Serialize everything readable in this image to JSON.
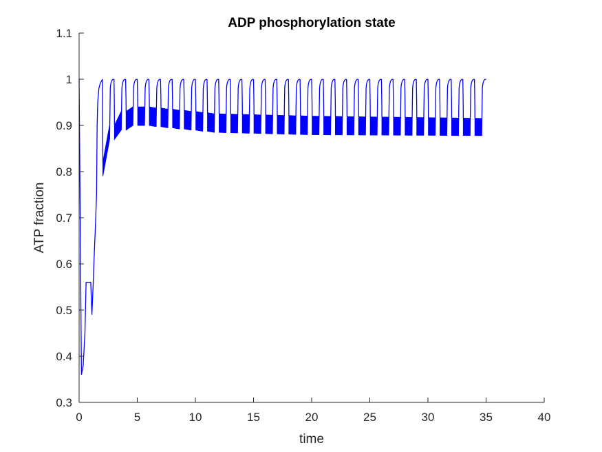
{
  "chart_data": {
    "type": "line",
    "title": "ADP phosphorylation state",
    "xlabel": "time",
    "ylabel": "ATP fraction",
    "xlim": [
      0,
      40
    ],
    "ylim": [
      0.3,
      1.1
    ],
    "xticks": [
      "0",
      "5",
      "10",
      "15",
      "20",
      "25",
      "30",
      "35",
      "40"
    ],
    "yticks": [
      "0.3",
      "0.4",
      "0.5",
      "0.6",
      "0.7",
      "0.8",
      "0.9",
      "1",
      "1.1"
    ],
    "grid": false,
    "series_color": "#0000ff",
    "series": [
      {
        "x": [
          0,
          0.2,
          0.35,
          0.5,
          0.6,
          0.7,
          0.8,
          1.0,
          1.1,
          1.2,
          1.3,
          1.4,
          1.5,
          1.55,
          1.6,
          1.7,
          1.8,
          2.0
        ],
        "y": [
          1.0,
          0.36,
          0.38,
          0.45,
          0.56,
          0.56,
          0.56,
          0.56,
          0.49,
          0.55,
          0.62,
          0.68,
          0.75,
          0.9,
          0.95,
          0.98,
          0.99,
          1.0
        ]
      }
    ],
    "oscillation": {
      "start": 2.0,
      "end": 35.0,
      "period": 1.0,
      "peak": 1.0,
      "trough_lower": [
        [
          2.0,
          0.79
        ],
        [
          3.0,
          0.87
        ],
        [
          4.0,
          0.89
        ],
        [
          5.0,
          0.9
        ],
        [
          6.0,
          0.9
        ],
        [
          8.0,
          0.895
        ],
        [
          12.0,
          0.885
        ],
        [
          20.0,
          0.88
        ],
        [
          35.0,
          0.878
        ]
      ],
      "trough_upper": [
        [
          2.0,
          0.82
        ],
        [
          3.0,
          0.9
        ],
        [
          4.0,
          0.93
        ],
        [
          5.0,
          0.94
        ],
        [
          6.0,
          0.94
        ],
        [
          8.0,
          0.935
        ],
        [
          12.0,
          0.925
        ],
        [
          20.0,
          0.92
        ],
        [
          35.0,
          0.915
        ]
      ]
    }
  }
}
